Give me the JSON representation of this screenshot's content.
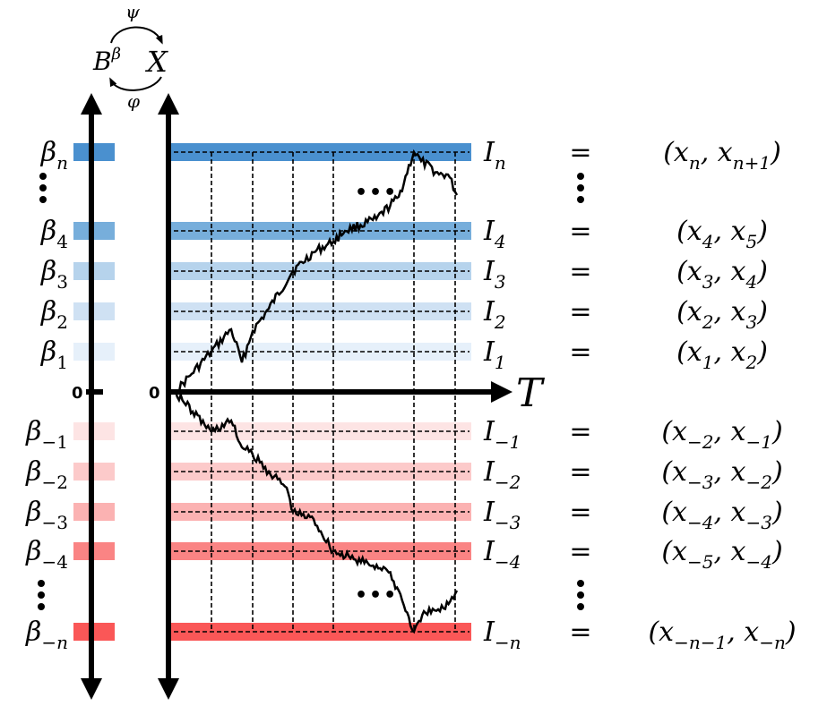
{
  "header": {
    "map_top": "ψ",
    "map_bottom": "φ",
    "left_space": "B",
    "left_space_sup": "β",
    "right_space": "X"
  },
  "axis": {
    "zero_left": "0",
    "zero_right": "0",
    "time_label": "T",
    "ellipsis": "•••"
  },
  "equals": "=",
  "colors": {
    "blue_levels": [
      "#e6f0fa",
      "#cfe1f3",
      "#b6d3ec",
      "#77aedb",
      "#4a90cf"
    ],
    "red_levels": [
      "#fde4e4",
      "#fccaca",
      "#fbb2b2",
      "#fa8484",
      "#fa5757"
    ]
  },
  "rows_positive": [
    {
      "id": "n",
      "beta": "β",
      "beta_sub": "n",
      "interval": "I",
      "interval_sub": "n",
      "range": "(x",
      "range_a_sub": "n",
      "range_mid": ", x",
      "range_b_sub": "n+1",
      "range_end": ")"
    },
    {
      "id": "4",
      "beta": "β",
      "beta_sub": "4",
      "interval": "I",
      "interval_sub": "4",
      "range": "(x",
      "range_a_sub": "4",
      "range_mid": ", x",
      "range_b_sub": "5",
      "range_end": ")"
    },
    {
      "id": "3",
      "beta": "β",
      "beta_sub": "3",
      "interval": "I",
      "interval_sub": "3",
      "range": "(x",
      "range_a_sub": "3",
      "range_mid": ", x",
      "range_b_sub": "4",
      "range_end": ")"
    },
    {
      "id": "2",
      "beta": "β",
      "beta_sub": "2",
      "interval": "I",
      "interval_sub": "2",
      "range": "(x",
      "range_a_sub": "2",
      "range_mid": ", x",
      "range_b_sub": "3",
      "range_end": ")"
    },
    {
      "id": "1",
      "beta": "β",
      "beta_sub": "1",
      "interval": "I",
      "interval_sub": "1",
      "range": "(x",
      "range_a_sub": "1",
      "range_mid": ", x",
      "range_b_sub": "2",
      "range_end": ")"
    }
  ],
  "rows_negative": [
    {
      "id": "-1",
      "beta": "β",
      "beta_sub": "−1",
      "interval": "I",
      "interval_sub": "−1",
      "range": "(x",
      "range_a_sub": "−2",
      "range_mid": ", x",
      "range_b_sub": "−1",
      "range_end": ")"
    },
    {
      "id": "-2",
      "beta": "β",
      "beta_sub": "−2",
      "interval": "I",
      "interval_sub": "−2",
      "range": "(x",
      "range_a_sub": "−3",
      "range_mid": ", x",
      "range_b_sub": "−2",
      "range_end": ")"
    },
    {
      "id": "-3",
      "beta": "β",
      "beta_sub": "−3",
      "interval": "I",
      "interval_sub": "−3",
      "range": "(x",
      "range_a_sub": "−4",
      "range_mid": ", x",
      "range_b_sub": "−3",
      "range_end": ")"
    },
    {
      "id": "-4",
      "beta": "β",
      "beta_sub": "−4",
      "interval": "I",
      "interval_sub": "−4",
      "range": "(x",
      "range_a_sub": "−5",
      "range_mid": ", x",
      "range_b_sub": "−4",
      "range_end": ")"
    },
    {
      "id": "-n",
      "beta": "β",
      "beta_sub": "−n",
      "interval": "I",
      "interval_sub": "−n",
      "range": "(x",
      "range_a_sub": "−n−1",
      "range_mid": ", x",
      "range_b_sub": "−n",
      "range_end": ")"
    }
  ]
}
